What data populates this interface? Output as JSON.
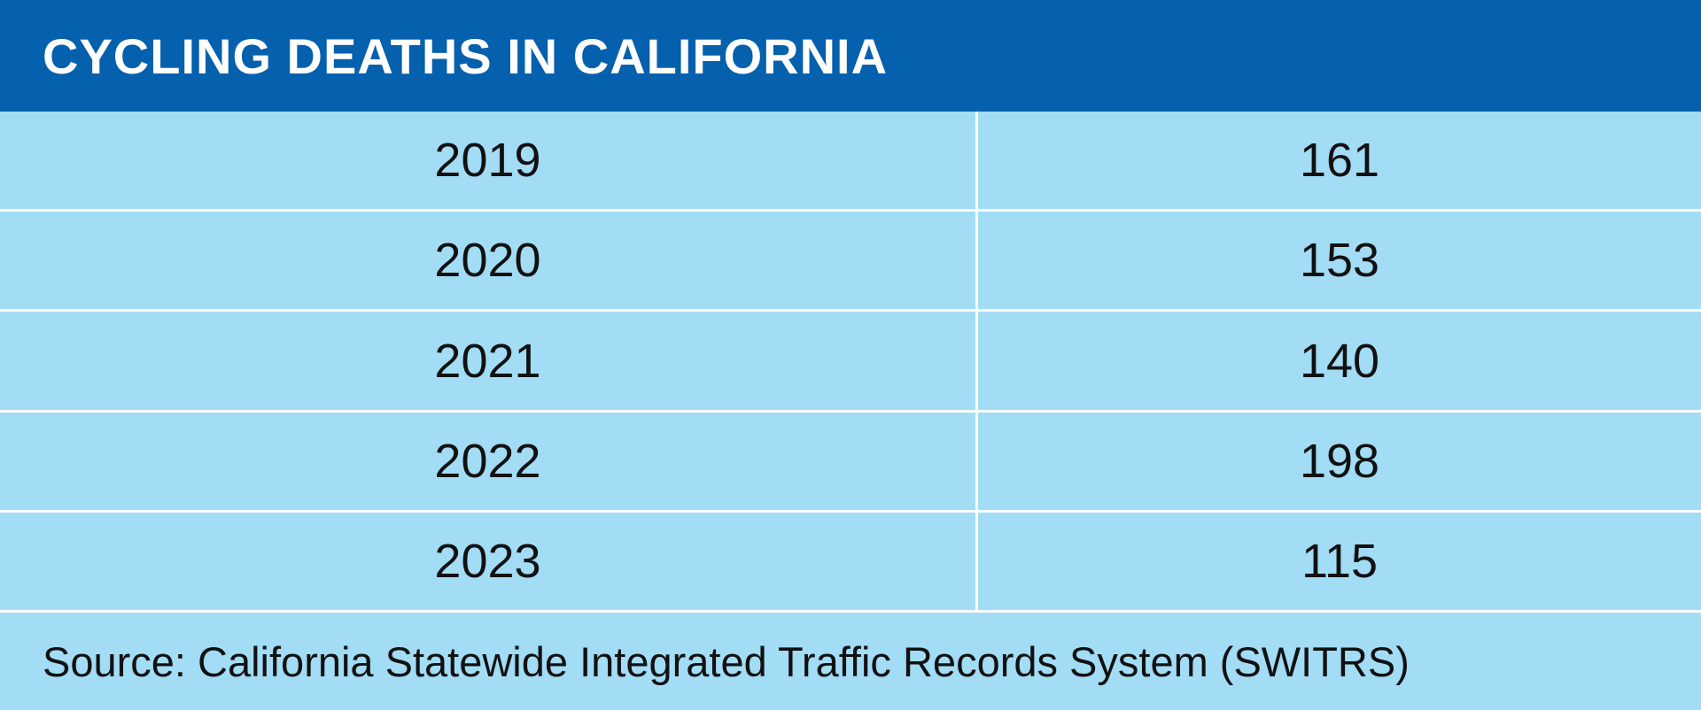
{
  "header": {
    "title": "CYCLING DEATHS IN CALIFORNIA"
  },
  "table": {
    "rows": [
      [
        "2019",
        "161"
      ],
      [
        "2020",
        "153"
      ],
      [
        "2021",
        "140"
      ],
      [
        "2022",
        "198"
      ],
      [
        "2023",
        "115"
      ]
    ]
  },
  "footer": {
    "source": "Source: California Statewide Integrated Traffic Records System (SWITRS)"
  }
}
